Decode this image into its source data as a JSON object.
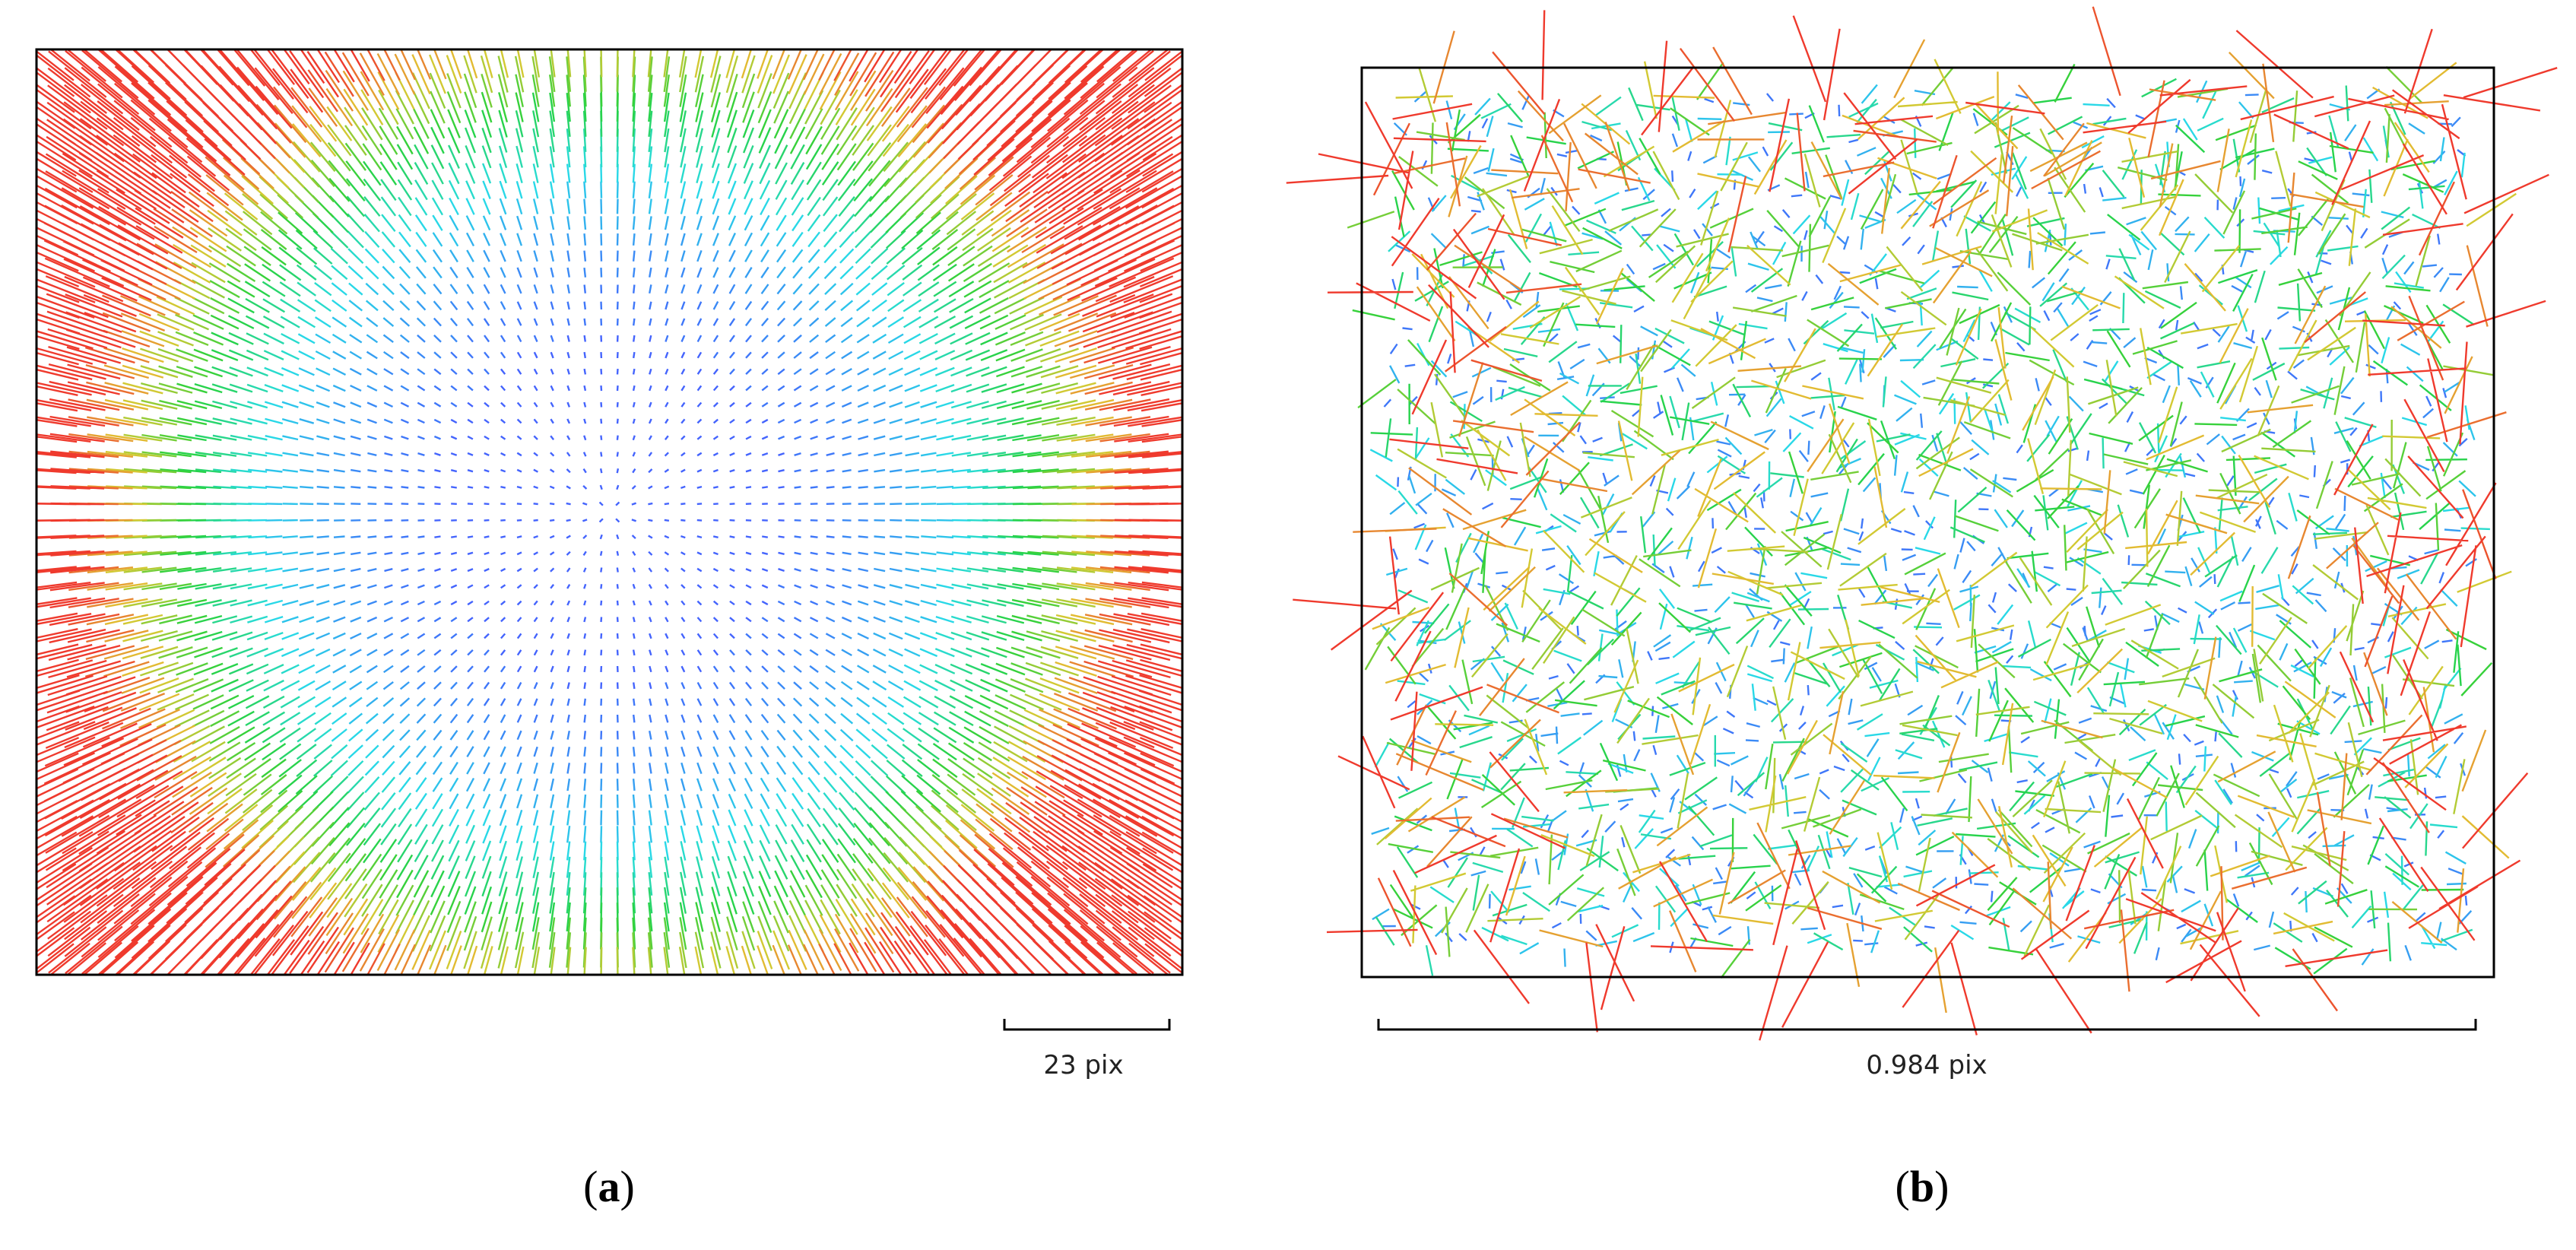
{
  "panels": [
    {
      "caption": "(a)",
      "scale_label": "23 pix"
    },
    {
      "caption": "(b)",
      "scale_label": "0.984 pix"
    }
  ]
}
